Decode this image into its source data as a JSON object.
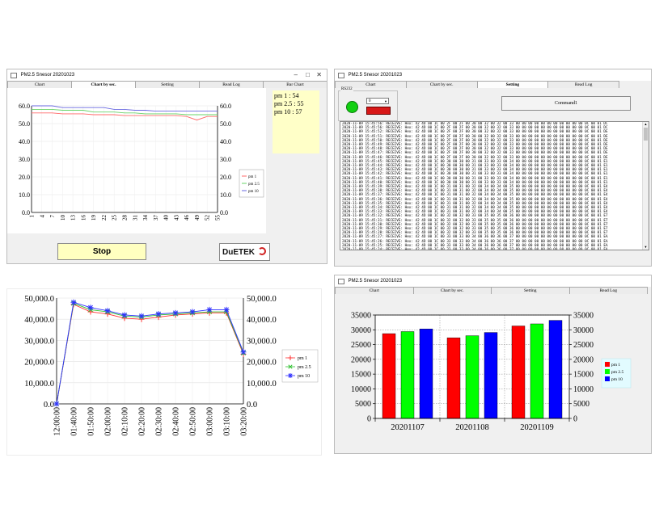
{
  "app_title": "PM2.5 Snesor 20201023",
  "tabs": [
    "Chart",
    "Chart by sec.",
    "Setting",
    "Read Log",
    "Bar Chart"
  ],
  "tabs_short": [
    "Chart",
    "Chart by sec.",
    "Setting",
    "Read Log"
  ],
  "win1": {
    "readout": [
      "pm 1 : 54",
      "pm 2.5 : 55",
      "pm 10 : 57"
    ],
    "stop_label": "Stop",
    "logo": "DuETEK"
  },
  "win2": {
    "group_label": "RS232",
    "combo_value": "0",
    "command_label": "Command1",
    "log_lines": [
      "2020-11-09 15:45:56: RECEIVE: Hex: 42 4D 00 1C 00 2F 00 2F 00 30 00 32 00 32 00 33 00 00 00 00 00 00 00 00 00 00 00 0C 00 01 DC",
      "2020-11-09 15:45:56: RECEIVE: Hex: 42 4D 00 1C 00 2F 00 2F 00 30 00 32 00 32 00 33 00 00 00 00 00 00 00 00 00 00 00 0C 00 01 DC",
      "2020-11-09 15:45:52: RECEIVE: Hex: 42 4D 00 1C 00 2F 00 2F 00 30 00 32 00 32 00 33 00 00 00 00 00 00 00 00 00 00 00 0C 00 01 DE",
      "2020-11-09 15:45:51: RECEIVE: Hex: 42 4D 00 1C 00 2F 00 2F 00 30 00 32 00 32 00 33 00 00 00 00 00 00 00 00 00 00 00 0C 00 01 DE",
      "2020-11-09 15:45:50: RECEIVE: Hex: 42 4D 00 1C 00 2F 00 2F 00 30 00 32 00 32 00 33 00 00 00 00 00 00 00 00 00 00 00 0C 00 01 DE",
      "2020-11-09 15:45:49: RECEIVE: Hex: 42 4D 00 1C 00 2F 00 2F 00 30 00 32 00 32 00 33 00 00 00 00 00 00 00 00 00 00 00 0C 00 01 DE",
      "2020-11-09 15:45:48: RECEIVE: Hex: 42 4D 00 1C 00 2F 00 2F 00 30 00 32 00 32 00 33 00 00 00 00 00 00 00 00 00 00 00 0C 00 01 DE",
      "2020-11-09 15:45:47: RECEIVE: Hex: 42 4D 00 1C 00 2F 00 2F 00 30 00 32 00 32 00 33 00 00 00 00 00 00 00 00 00 00 00 0C 00 01 DE",
      "2020-11-09 15:45:46: RECEIVE: Hex: 42 4D 00 1C 00 2F 00 2F 00 30 00 32 00 32 00 33 00 00 00 00 00 00 00 00 00 00 00 0C 00 01 DE",
      "2020-11-09 15:45:45: RECEIVE: Hex: 42 4D 00 1C 00 30 00 30 00 31 00 33 00 33 00 34 00 00 00 00 00 00 00 00 00 00 00 0C 00 01 E1",
      "2020-11-09 15:45:44: RECEIVE: Hex: 42 4D 00 1C 00 30 00 30 00 31 00 33 00 33 00 34 00 00 00 00 00 00 00 00 00 00 00 0C 00 01 E1",
      "2020-11-09 15:45:43: RECEIVE: Hex: 42 4D 00 1C 00 30 00 30 00 31 00 33 00 33 00 34 00 00 00 00 00 00 00 00 00 00 00 0C 00 01 E1",
      "2020-11-09 15:45:42: RECEIVE: Hex: 42 4D 00 1C 00 30 00 30 00 31 00 33 00 33 00 34 00 00 00 00 00 00 00 00 00 00 00 0C 00 01 E1",
      "2020-11-09 15:45:41: RECEIVE: Hex: 42 4D 00 1C 00 30 00 30 00 31 00 33 00 33 00 34 00 00 00 00 00 00 00 00 00 00 00 0C 00 01 E1",
      "2020-11-09 15:45:40: RECEIVE: Hex: 42 4D 00 1C 00 30 00 30 00 31 00 33 00 33 00 34 00 00 00 00 00 00 00 00 00 00 00 0C 00 01 E1",
      "2020-11-09 15:45:39: RECEIVE: Hex: 42 4D 00 1C 00 31 00 31 00 32 00 34 00 34 00 35 00 00 00 00 00 00 00 00 00 00 00 0C 00 01 E4",
      "2020-11-09 15:45:38: RECEIVE: Hex: 42 4D 00 1C 00 31 00 31 00 32 00 34 00 34 00 35 00 00 00 00 00 00 00 00 00 00 00 0C 00 01 E4",
      "2020-11-09 15:45:37: RECEIVE: Hex: 42 4D 00 1C 00 31 00 31 00 32 00 34 00 34 00 35 00 00 00 00 00 00 00 00 00 00 00 0C 00 01 E4",
      "2020-11-09 15:45:36: RECEIVE: Hex: 42 4D 00 1C 00 31 00 31 00 32 00 34 00 34 00 35 00 00 00 00 00 00 00 00 00 00 00 0C 00 01 E4",
      "2020-11-09 15:45:35: RECEIVE: Hex: 42 4D 00 1C 00 31 00 31 00 32 00 34 00 34 00 35 00 00 00 00 00 00 00 00 00 00 00 0C 00 01 E4",
      "2020-11-09 15:45:34: RECEIVE: Hex: 42 4D 00 1C 00 31 00 31 00 32 00 34 00 34 00 35 00 00 00 00 00 00 00 00 00 00 00 0C 00 01 E4",
      "2020-11-09 15:45:33: RECEIVE: Hex: 42 4D 00 1C 00 31 00 31 00 32 00 34 00 34 00 35 00 00 00 00 00 00 00 00 00 00 00 0C 00 01 E4",
      "2020-11-09 15:45:32: RECEIVE: Hex: 42 4D 00 1C 00 32 00 32 00 33 00 35 00 35 00 36 00 00 00 00 00 00 00 00 00 00 00 0C 00 01 E7",
      "2020-11-09 15:45:31: RECEIVE: Hex: 42 4D 00 1C 00 32 00 32 00 33 00 35 00 35 00 36 00 00 00 00 00 00 00 00 00 00 00 0C 00 01 E7",
      "2020-11-09 15:45:30: RECEIVE: Hex: 42 4D 00 1C 00 32 00 32 00 33 00 35 00 35 00 36 00 00 00 00 00 00 00 00 00 00 00 0C 00 01 E7",
      "2020-11-09 15:45:29: RECEIVE: Hex: 42 4D 00 1C 00 32 00 32 00 33 00 35 00 35 00 36 00 00 00 00 00 00 00 00 00 00 00 0C 00 01 E7",
      "2020-11-09 15:45:28: RECEIVE: Hex: 42 4D 00 1C 00 32 00 32 00 33 00 35 00 35 00 36 00 00 00 00 00 00 00 00 00 00 00 0C 00 01 E7",
      "2020-11-09 15:45:27: RECEIVE: Hex: 42 4D 00 1C 00 33 00 33 00 34 00 36 00 36 00 37 00 00 00 00 00 00 00 00 00 00 00 0C 00 01 EA",
      "2020-11-09 15:45:26: RECEIVE: Hex: 42 4D 00 1C 00 33 00 33 00 34 00 36 00 36 00 37 00 00 00 00 00 00 00 00 00 00 00 0C 00 01 EA",
      "2020-11-09 15:45:25: RECEIVE: Hex: 42 4D 00 1C 00 33 00 33 00 34 00 36 00 36 00 37 00 00 00 00 00 00 00 00 00 00 00 0C 00 01 EA",
      "2020-11-09 15:45:24: RECEIVE: Hex: 42 4D 00 1C 00 33 00 33 00 34 00 36 00 36 00 37 00 00 00 00 00 00 00 00 00 00 00 0C 00 01 EA",
      "2020-11-09 15:45:23: RECEIVE: Hex: 42 4D 00 1C 00 33 00 33 00 34 00 36 00 36 00 37 00 00 00 00 00 00 00 00 00 00 00 0C 00 01 EA",
      "2020-11-09 15:45:22: RECEIVE: Hex: 42 4D 00 1C 00 34 00 34 00 35 00 37 00 37 00 38 00 00 00 00 00 00 00 00 00 00 00 0C 00 01 ED",
      "2020-11-09 15:45:21: RECEIVE: Hex: 42 4D 00 1C 00 34 00 34 00 35 00 37 00 37 00 38 00 00 00 00 00 00 00 00 00 00 00 0C 00 01 ED",
      "2020-11-09 15:45:20: RECEIVE: Hex: 42 4D 00 1C 00 34 00 34 00 35 00 37 00 37 00 38 00 00 00 00 00 00 00 00 00 00 00 0C 00 01 ED",
      "2020-11-09 15:45:19: RECEIVE: Hex: 42 4D 00 1C 00 34 00 34 00 35 00 37 00 37 00 38 00 00 00 00 00 00 00 00 00 00 00 0C 00 01 ED",
      "2020-11-09 15:45:18: RECEIVE: Hex: 42 4D 00 1C 00 35 00 35 00 36 00 38 00 38 00 39 00 00 00 00 00 00 00 00 00 00 00 0C 00 01 F0",
      "2020-11-09 15:45:17: RECEIVE: Hex: 42 4D 00 1C 00 35 00 35 00 36 00 38 00 38 00 39 00 00 00 00 00 00 00 00 00 00 00 0C 00 01 F0",
      "2020-11-09 15:45:16: RECEIVE: Hex: 42 4D 00 1C 00 35 00 35 00 36 00 38 00 38 00 39 00 00 00 00 00 00 00 00 00 00 00 0C 00 01 F0",
      "2020-11-09 15:45:15: RECEIVE: Hex: 42 4D 00 1C 00 35 00 35 00 36 00 38 00 38 00 39 00 00 00 00 00 00 00 00 00 00 00 0C 00 01 F3",
      "2020-11-09 15:45:14: RECEIVE: Hex: 42 4D 00 1C 00 36 00 36 00 37 00 39 00 39 00 3A 00 00 00 00 00 00 00 00 00 00 00 0C 00 01 F3"
    ]
  },
  "chart_data": [
    {
      "type": "line",
      "x": [
        "1",
        "4",
        "7",
        "10",
        "13",
        "16",
        "19",
        "22",
        "25",
        "28",
        "31",
        "34",
        "37",
        "40",
        "43",
        "46",
        "49",
        "52",
        "55"
      ],
      "ylim": [
        0,
        60
      ],
      "yticks": [
        "0.0",
        "10.0",
        "20.0",
        "30.0",
        "40.0",
        "50.0",
        "60.0"
      ],
      "grid": true,
      "legend": "right",
      "series": [
        {
          "name": "pm 1",
          "color": "#ff6a6a",
          "values": [
            56,
            56,
            56,
            55.5,
            55.5,
            55.5,
            55,
            55,
            55,
            54.5,
            54.5,
            54.5,
            54.5,
            54.5,
            54.5,
            54,
            52,
            54,
            54
          ]
        },
        {
          "name": "pm 2.5",
          "color": "#6ad46a",
          "values": [
            58,
            58,
            58,
            57.5,
            57.5,
            57.5,
            56.5,
            56.5,
            56.5,
            56,
            56,
            55.5,
            55.5,
            55.5,
            55.5,
            55,
            55,
            55,
            55
          ]
        },
        {
          "name": "pm 10",
          "color": "#6a6ae0",
          "values": [
            60,
            60,
            60,
            59,
            59,
            59,
            59,
            59,
            58,
            58,
            57.5,
            57.5,
            57,
            57,
            57,
            57,
            57,
            57,
            57
          ]
        }
      ]
    },
    {
      "type": "line",
      "x": [
        "12:00:00",
        "01:40:00",
        "01:50:00",
        "02:00:00",
        "02:10:00",
        "02:20:00",
        "02:30:00",
        "02:40:00",
        "02:50:00",
        "03:00:00",
        "03:10:00",
        "03:20:00"
      ],
      "ylim": [
        0,
        50000
      ],
      "yticks": [
        "0.0",
        "10,000.0",
        "20,000.0",
        "30,000.0",
        "40,000.0",
        "50,000.0"
      ],
      "grid": true,
      "legend": "right",
      "series": [
        {
          "name": "pm 1",
          "color": "#ff3030",
          "marker": "plus",
          "values": [
            0,
            47000,
            43500,
            42500,
            40500,
            40000,
            41000,
            42000,
            42500,
            43000,
            43000,
            23500
          ]
        },
        {
          "name": "pm 2.5",
          "color": "#30c030",
          "marker": "cross",
          "values": [
            0,
            47500,
            44500,
            43500,
            41500,
            41000,
            42000,
            42500,
            43000,
            43500,
            43500,
            24000
          ]
        },
        {
          "name": "pm 10",
          "color": "#3030ff",
          "marker": "star",
          "values": [
            0,
            48000,
            45500,
            44000,
            42000,
            41500,
            42500,
            43000,
            43500,
            44500,
            44500,
            24500
          ]
        }
      ]
    },
    {
      "type": "bar",
      "categories": [
        "20201107",
        "20201108",
        "20201109"
      ],
      "ylim": [
        0,
        35000
      ],
      "yticks": [
        "0",
        "5000",
        "10000",
        "15000",
        "20000",
        "25000",
        "30000",
        "35000"
      ],
      "grid": true,
      "legend": "right",
      "series": [
        {
          "name": "pm 1",
          "color": "#ff0000",
          "values": [
            28700,
            27300,
            31300
          ]
        },
        {
          "name": "pm 2.5",
          "color": "#00ff00",
          "values": [
            29400,
            28000,
            32000
          ]
        },
        {
          "name": "pm 10",
          "color": "#0000ff",
          "values": [
            30300,
            29100,
            33200
          ]
        }
      ]
    }
  ]
}
